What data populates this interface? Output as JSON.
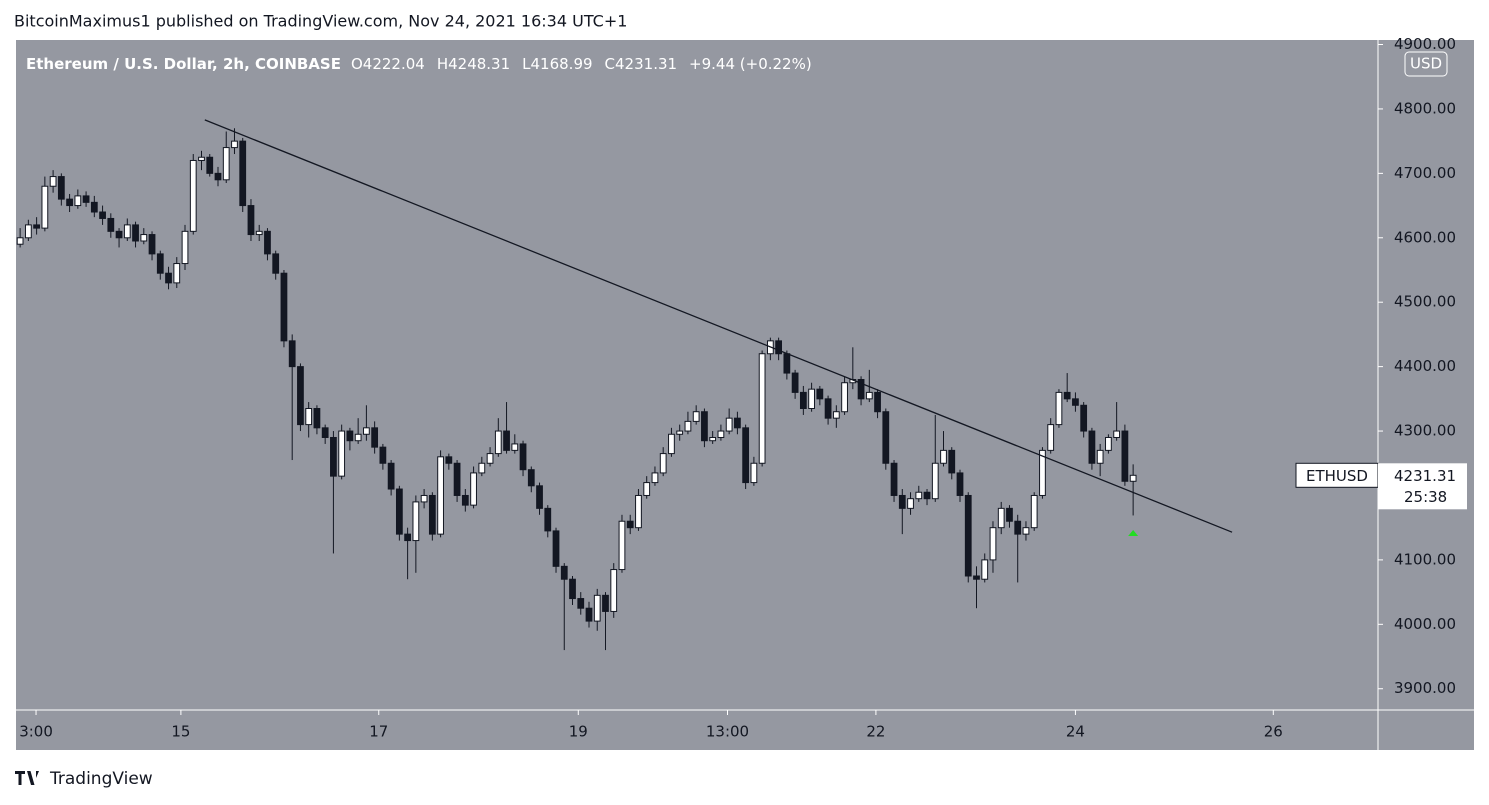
{
  "header": "BitcoinMaximus1 published on TradingView.com, Nov 24, 2021 16:34 UTC+1",
  "footer": "TradingView",
  "chart_data": {
    "type": "candlestick",
    "symbol": "Ethereum / U.S. Dollar, 2h, COINBASE",
    "ohlc_labels": [
      "O",
      "H",
      "L",
      "C"
    ],
    "change": "+9.44 (+0.22%)",
    "currency": "USD",
    "ticker": "ETHUSD",
    "countdown": "25:38",
    "up_color": "#ffffff",
    "down_color": "#131722",
    "background": "#9598a1",
    "ylim": [
      3867,
      4907
    ],
    "yticks": [
      {
        "value": 3900,
        "label": "3900.00"
      },
      {
        "value": 4000,
        "label": "4000.00"
      },
      {
        "value": 4100,
        "label": "4100.00"
      },
      {
        "value": 4200,
        "label": "4200.00"
      },
      {
        "value": 4300,
        "label": "4300.00"
      },
      {
        "value": 4400,
        "label": "4400.00"
      },
      {
        "value": 4500,
        "label": "4500.00"
      },
      {
        "value": 4600,
        "label": "4600.00"
      },
      {
        "value": 4700,
        "label": "4700.00"
      },
      {
        "value": 4800,
        "label": "4800.00"
      },
      {
        "value": 4900,
        "label": "4900.00"
      }
    ],
    "xlim": [
      0,
      165.2
    ],
    "xticks": [
      {
        "value": 2.43,
        "label": "3:00"
      },
      {
        "value": 20.0,
        "label": "15"
      },
      {
        "value": 44.0,
        "label": "17"
      },
      {
        "value": 68.2,
        "label": "19"
      },
      {
        "value": 86.3,
        "label": "13:00"
      },
      {
        "value": 104.3,
        "label": "22"
      },
      {
        "value": 128.5,
        "label": "24"
      },
      {
        "value": 152.5,
        "label": "26"
      }
    ],
    "trendline": {
      "x": [
        22.9,
        147.5
      ],
      "y": [
        4783,
        4143
      ]
    },
    "candles": [
      [
        4590,
        4615,
        4585,
        4600
      ],
      [
        4600,
        4628,
        4595,
        4620
      ],
      [
        4620,
        4632,
        4605,
        4615
      ],
      [
        4615,
        4695,
        4610,
        4680
      ],
      [
        4680,
        4705,
        4670,
        4695
      ],
      [
        4695,
        4700,
        4650,
        4660
      ],
      [
        4660,
        4668,
        4640,
        4650
      ],
      [
        4650,
        4675,
        4645,
        4665
      ],
      [
        4665,
        4672,
        4648,
        4655
      ],
      [
        4655,
        4665,
        4632,
        4640
      ],
      [
        4640,
        4650,
        4620,
        4630
      ],
      [
        4630,
        4638,
        4600,
        4610
      ],
      [
        4610,
        4615,
        4585,
        4600
      ],
      [
        4600,
        4630,
        4595,
        4620
      ],
      [
        4620,
        4625,
        4585,
        4595
      ],
      [
        4595,
        4615,
        4590,
        4605
      ],
      [
        4605,
        4610,
        4565,
        4575
      ],
      [
        4575,
        4580,
        4535,
        4545
      ],
      [
        4545,
        4555,
        4520,
        4530
      ],
      [
        4530,
        4570,
        4522,
        4560
      ],
      [
        4560,
        4620,
        4550,
        4610
      ],
      [
        4610,
        4730,
        4605,
        4720
      ],
      [
        4720,
        4735,
        4705,
        4725
      ],
      [
        4725,
        4730,
        4695,
        4700
      ],
      [
        4700,
        4710,
        4680,
        4690
      ],
      [
        4690,
        4765,
        4685,
        4740
      ],
      [
        4740,
        4770,
        4730,
        4750
      ],
      [
        4750,
        4755,
        4640,
        4650
      ],
      [
        4650,
        4660,
        4595,
        4605
      ],
      [
        4605,
        4620,
        4595,
        4610
      ],
      [
        4610,
        4615,
        4565,
        4575
      ],
      [
        4575,
        4580,
        4535,
        4545
      ],
      [
        4545,
        4550,
        4430,
        4440
      ],
      [
        4440,
        4450,
        4255,
        4400
      ],
      [
        4400,
        4405,
        4300,
        4310
      ],
      [
        4310,
        4345,
        4290,
        4335
      ],
      [
        4335,
        4340,
        4295,
        4305
      ],
      [
        4305,
        4310,
        4280,
        4290
      ],
      [
        4290,
        4300,
        4110,
        4230
      ],
      [
        4230,
        4310,
        4225,
        4300
      ],
      [
        4300,
        4305,
        4270,
        4285
      ],
      [
        4285,
        4320,
        4280,
        4295
      ],
      [
        4295,
        4340,
        4285,
        4305
      ],
      [
        4305,
        4315,
        4265,
        4275
      ],
      [
        4275,
        4280,
        4240,
        4250
      ],
      [
        4250,
        4255,
        4200,
        4210
      ],
      [
        4210,
        4215,
        4130,
        4140
      ],
      [
        4140,
        4150,
        4070,
        4130
      ],
      [
        4130,
        4200,
        4080,
        4190
      ],
      [
        4190,
        4210,
        4180,
        4200
      ],
      [
        4200,
        4205,
        4130,
        4140
      ],
      [
        4140,
        4270,
        4135,
        4260
      ],
      [
        4260,
        4265,
        4240,
        4250
      ],
      [
        4250,
        4255,
        4190,
        4200
      ],
      [
        4200,
        4210,
        4175,
        4185
      ],
      [
        4185,
        4245,
        4180,
        4235
      ],
      [
        4235,
        4260,
        4230,
        4250
      ],
      [
        4250,
        4275,
        4245,
        4265
      ],
      [
        4265,
        4320,
        4260,
        4300
      ],
      [
        4300,
        4345,
        4265,
        4270
      ],
      [
        4270,
        4295,
        4265,
        4280
      ],
      [
        4280,
        4285,
        4230,
        4240
      ],
      [
        4240,
        4245,
        4205,
        4215
      ],
      [
        4215,
        4220,
        4170,
        4180
      ],
      [
        4180,
        4185,
        4135,
        4145
      ],
      [
        4145,
        4150,
        4080,
        4090
      ],
      [
        4090,
        4095,
        3960,
        4070
      ],
      [
        4070,
        4075,
        4030,
        4040
      ],
      [
        4040,
        4050,
        4015,
        4025
      ],
      [
        4025,
        4035,
        3995,
        4005
      ],
      [
        4005,
        4055,
        3990,
        4045
      ],
      [
        4045,
        4050,
        3960,
        4020
      ],
      [
        4020,
        4095,
        4010,
        4085
      ],
      [
        4085,
        4170,
        4080,
        4160
      ],
      [
        4160,
        4170,
        4140,
        4150
      ],
      [
        4150,
        4210,
        4145,
        4200
      ],
      [
        4200,
        4230,
        4195,
        4220
      ],
      [
        4220,
        4245,
        4215,
        4235
      ],
      [
        4235,
        4275,
        4230,
        4265
      ],
      [
        4265,
        4305,
        4260,
        4295
      ],
      [
        4295,
        4310,
        4285,
        4300
      ],
      [
        4300,
        4330,
        4295,
        4315
      ],
      [
        4315,
        4340,
        4310,
        4330
      ],
      [
        4330,
        4335,
        4275,
        4285
      ],
      [
        4285,
        4300,
        4280,
        4290
      ],
      [
        4290,
        4310,
        4285,
        4300
      ],
      [
        4300,
        4335,
        4295,
        4320
      ],
      [
        4320,
        4330,
        4295,
        4305
      ],
      [
        4305,
        4310,
        4210,
        4220
      ],
      [
        4220,
        4260,
        4215,
        4250
      ],
      [
        4250,
        4425,
        4245,
        4420
      ],
      [
        4420,
        4445,
        4410,
        4440
      ],
      [
        4440,
        4445,
        4410,
        4420
      ],
      [
        4420,
        4425,
        4380,
        4390
      ],
      [
        4390,
        4395,
        4350,
        4360
      ],
      [
        4360,
        4370,
        4325,
        4335
      ],
      [
        4335,
        4375,
        4330,
        4365
      ],
      [
        4365,
        4370,
        4340,
        4350
      ],
      [
        4350,
        4355,
        4310,
        4320
      ],
      [
        4320,
        4340,
        4305,
        4330
      ],
      [
        4330,
        4385,
        4325,
        4375
      ],
      [
        4375,
        4430,
        4365,
        4380
      ],
      [
        4380,
        4385,
        4340,
        4350
      ],
      [
        4350,
        4395,
        4345,
        4360
      ],
      [
        4360,
        4365,
        4320,
        4330
      ],
      [
        4330,
        4335,
        4240,
        4250
      ],
      [
        4250,
        4255,
        4190,
        4200
      ],
      [
        4200,
        4210,
        4140,
        4180
      ],
      [
        4180,
        4205,
        4170,
        4195
      ],
      [
        4195,
        4215,
        4190,
        4205
      ],
      [
        4205,
        4210,
        4185,
        4195
      ],
      [
        4195,
        4325,
        4190,
        4250
      ],
      [
        4250,
        4300,
        4245,
        4270
      ],
      [
        4270,
        4275,
        4225,
        4235
      ],
      [
        4235,
        4240,
        4190,
        4200
      ],
      [
        4200,
        4205,
        4065,
        4075
      ],
      [
        4075,
        4090,
        4025,
        4070
      ],
      [
        4070,
        4110,
        4065,
        4100
      ],
      [
        4100,
        4160,
        4080,
        4150
      ],
      [
        4150,
        4190,
        4140,
        4180
      ],
      [
        4180,
        4185,
        4150,
        4160
      ],
      [
        4160,
        4170,
        4065,
        4140
      ],
      [
        4140,
        4160,
        4130,
        4150
      ],
      [
        4150,
        4205,
        4145,
        4200
      ],
      [
        4200,
        4275,
        4195,
        4270
      ],
      [
        4270,
        4320,
        4265,
        4310
      ],
      [
        4310,
        4365,
        4305,
        4360
      ],
      [
        4360,
        4390,
        4345,
        4350
      ],
      [
        4350,
        4360,
        4330,
        4340
      ],
      [
        4340,
        4345,
        4290,
        4300
      ],
      [
        4300,
        4305,
        4240,
        4250
      ],
      [
        4250,
        4280,
        4230,
        4270
      ],
      [
        4270,
        4295,
        4265,
        4290
      ],
      [
        4290,
        4345,
        4285,
        4300
      ],
      [
        4300,
        4310,
        4215,
        4222.04
      ],
      [
        4222.04,
        4248.31,
        4168.99,
        4231.31
      ]
    ]
  }
}
